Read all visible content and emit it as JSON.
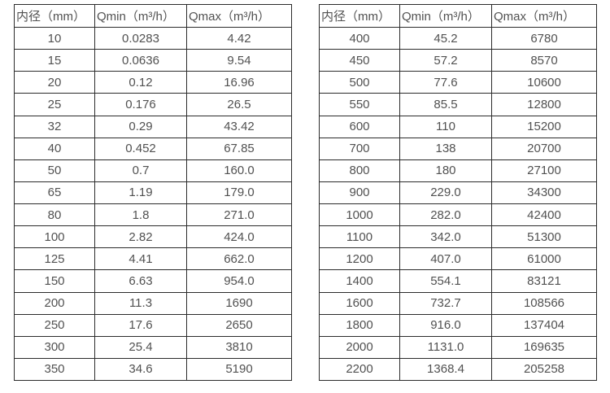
{
  "page": {
    "background": "#ffffff",
    "text_color": "#515151",
    "border_color": "#2b2b2b"
  },
  "tables": [
    {
      "title": "flow-spec-table-small-diameters",
      "headers": [
        "内径（mm）",
        "Qmin（m³/h）",
        "Qmax（m³/h）"
      ],
      "rows": [
        [
          "10",
          "0.0283",
          "4.42"
        ],
        [
          "15",
          "0.0636",
          "9.54"
        ],
        [
          "20",
          "0.12",
          "16.96"
        ],
        [
          "25",
          "0.176",
          "26.5"
        ],
        [
          "32",
          "0.29",
          "43.42"
        ],
        [
          "40",
          "0.452",
          "67.85"
        ],
        [
          "50",
          "0.7",
          "160.0"
        ],
        [
          "65",
          "1.19",
          "179.0"
        ],
        [
          "80",
          "1.8",
          "271.0"
        ],
        [
          "100",
          "2.82",
          "424.0"
        ],
        [
          "125",
          "4.41",
          "662.0"
        ],
        [
          "150",
          "6.63",
          "954.0"
        ],
        [
          "200",
          "11.3",
          "1690"
        ],
        [
          "250",
          "17.6",
          "2650"
        ],
        [
          "300",
          "25.4",
          "3810"
        ],
        [
          "350",
          "34.6",
          "5190"
        ]
      ]
    },
    {
      "title": "flow-spec-table-large-diameters",
      "headers": [
        "内径（mm）",
        "Qmin（m³/h）",
        "Qmax（m³/h）"
      ],
      "rows": [
        [
          "400",
          "45.2",
          "6780"
        ],
        [
          "450",
          "57.2",
          "8570"
        ],
        [
          "500",
          "77.6",
          "10600"
        ],
        [
          "550",
          "85.5",
          "12800"
        ],
        [
          "600",
          "110",
          "15200"
        ],
        [
          "700",
          "138",
          "20700"
        ],
        [
          "800",
          "180",
          "27100"
        ],
        [
          "900",
          "229.0",
          "34300"
        ],
        [
          "1000",
          "282.0",
          "42400"
        ],
        [
          "1100",
          "342.0",
          "51300"
        ],
        [
          "1200",
          "407.0",
          "61000"
        ],
        [
          "1400",
          "554.1",
          "83121"
        ],
        [
          "1600",
          "732.7",
          "108566"
        ],
        [
          "1800",
          "916.0",
          "137404"
        ],
        [
          "2000",
          "1131.0",
          "169635"
        ],
        [
          "2200",
          "1368.4",
          "205258"
        ]
      ]
    }
  ]
}
